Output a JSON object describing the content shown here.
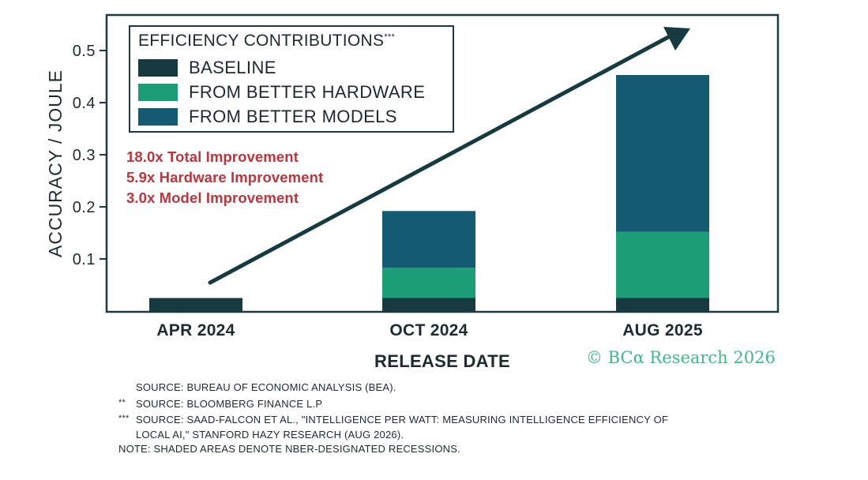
{
  "chart_data": {
    "type": "bar",
    "stacked": true,
    "categories": [
      "APR 2024",
      "OCT 2024",
      "AUG 2025"
    ],
    "series": [
      {
        "name": "BASELINE",
        "values": [
          0.025,
          0.025,
          0.025
        ]
      },
      {
        "name": "FROM BETTER HARDWARE",
        "values": [
          0,
          0.058,
          0.127
        ]
      },
      {
        "name": "FROM BETTER MODELS",
        "values": [
          0,
          0.109,
          0.301
        ]
      }
    ],
    "title": "",
    "xlabel": "RELEASE DATE",
    "ylabel": "ACCURACY / JOULE",
    "ylim": [
      0,
      0.55
    ],
    "yticks": [
      0.1,
      0.2,
      0.3,
      0.4,
      0.5
    ],
    "ytick_labels": [
      "0.1",
      "0.2",
      "0.3",
      "0.4",
      "0.5"
    ],
    "grid": false,
    "legend_position": "top-left",
    "colors": {
      "BASELINE": "#163a3f",
      "FROM BETTER HARDWARE": "#1b9e76",
      "FROM BETTER MODELS": "#135a72"
    },
    "trend_arrow": true
  },
  "legend": {
    "title": "EFFICIENCY CONTRIBUTIONS",
    "title_mark": "***",
    "items": [
      {
        "label": "BASELINE",
        "color": "#163a3f"
      },
      {
        "label": "FROM BETTER HARDWARE",
        "color": "#1b9e76"
      },
      {
        "label": "FROM BETTER MODELS",
        "color": "#135a72"
      }
    ]
  },
  "annotations": [
    "18.0x Total Improvement",
    "5.9x Hardware Improvement",
    "3.0x Model Improvement"
  ],
  "copyright": "© BCα Research 2026",
  "sources": [
    {
      "marker": "",
      "text": "SOURCE: BUREAU OF ECONOMIC ANALYSIS (BEA)."
    },
    {
      "marker": "**",
      "text": "SOURCE: BLOOMBERG FINANCE L.P"
    },
    {
      "marker": "***",
      "text": "SOURCE: SAAD-FALCON ET AL., \"INTELLIGENCE PER WATT: MEASURING INTELLIGENCE EFFICIENCY OF"
    },
    {
      "marker": "",
      "text": "LOCAL AI,\" STANFORD HAZY RESEARCH (AUG 2026).",
      "indent": true
    },
    {
      "marker": "",
      "text": "NOTE: SHADED AREAS DENOTE NBER-DESIGNATED RECESSIONS.",
      "flush": true
    }
  ],
  "colors": {
    "frame": "#1c3a40",
    "annotation": "#c0343b",
    "arrow": "#163a3f",
    "brand": "#3fba87"
  }
}
